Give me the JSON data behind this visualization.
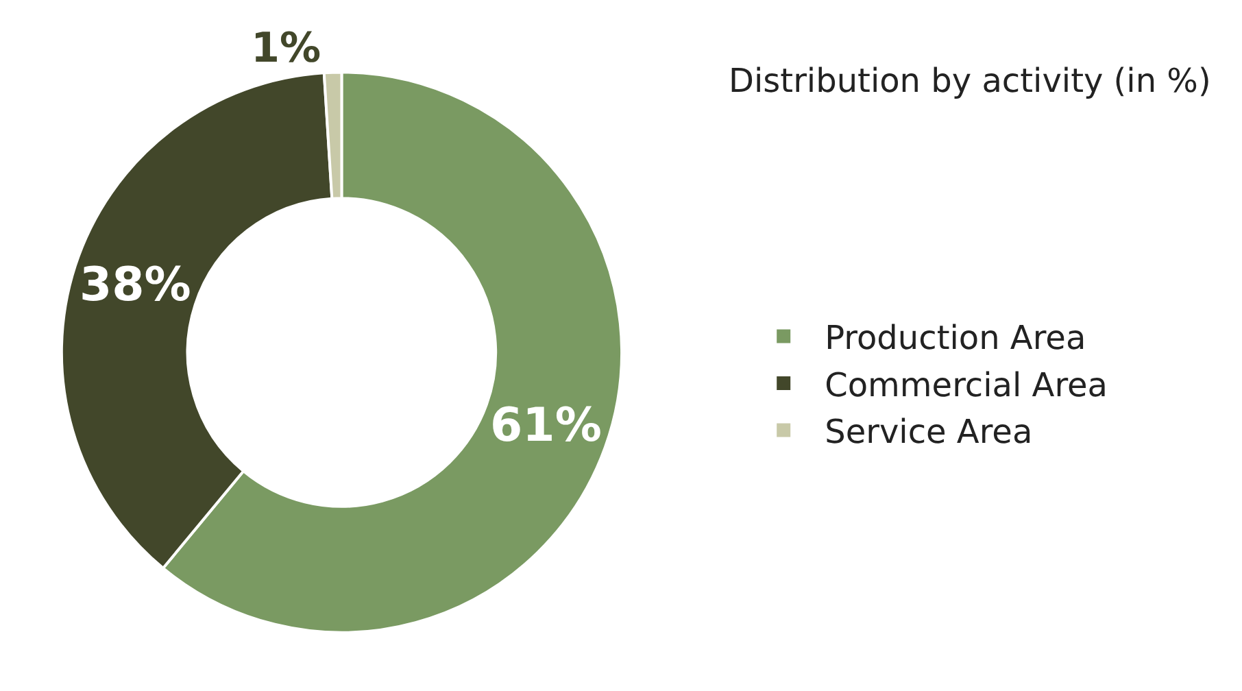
{
  "chart_data": {
    "type": "donut",
    "title": "Distribution by activity (in %)",
    "categories": [
      "Production Area",
      "Commercial Area",
      "Service Area"
    ],
    "values": [
      61,
      38,
      1
    ],
    "value_labels": [
      "61%",
      "38%",
      "1%"
    ],
    "colors": [
      "#7a9a62",
      "#42472a",
      "#c8c9a8"
    ],
    "legend": "right"
  }
}
